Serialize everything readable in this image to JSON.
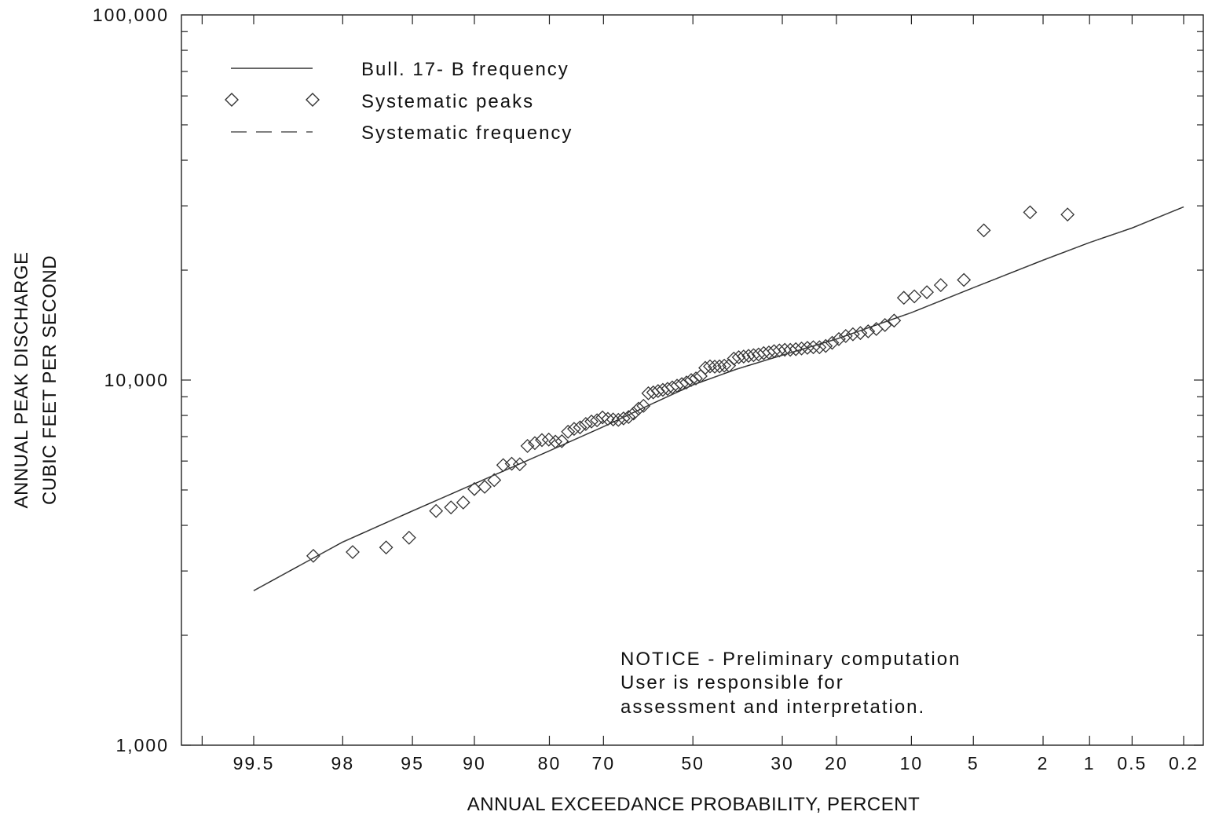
{
  "chart_data": {
    "type": "scatter",
    "y_scale": "log",
    "x_scale": "normal-probability-exceedance",
    "xlabel": "ANNUAL EXCEEDANCE PROBABILITY, PERCENT",
    "ylabel_lines": [
      "ANNUAL PEAK DISCHARGE",
      "CUBIC FEET PER SECOND"
    ],
    "ylim": [
      1000,
      100000
    ],
    "xlim": [
      99.8,
      0.1
    ],
    "y_ticks": [
      1000,
      10000,
      100000
    ],
    "y_tick_labels": [
      "1,000",
      "10,000",
      "100,000"
    ],
    "x_ticks": [
      99.5,
      98,
      95,
      90,
      80,
      70,
      50,
      30,
      20,
      10,
      5,
      2,
      1,
      0.5,
      0.2
    ],
    "x_tick_labels": [
      "99.5",
      "98",
      "95",
      "90",
      "80",
      "70",
      "50",
      "30",
      "20",
      "10",
      "5",
      "2",
      "1",
      "0.5",
      "0.2"
    ],
    "legend": {
      "placement": "top-left",
      "entries": [
        {
          "label": "Bull. 17- B frequency",
          "symbol": "solid-line"
        },
        {
          "label": "Systematic peaks",
          "symbol": "diamond"
        },
        {
          "label": "Systematic frequency",
          "symbol": "dashed-line"
        }
      ]
    },
    "notice": [
      "NOTICE -  Preliminary computation",
      "User is responsible for",
      "assessment and interpretation."
    ],
    "series": [
      {
        "name": "Bull. 17- B frequency",
        "kind": "line",
        "x": [
          99.5,
          98,
          95,
          90,
          80,
          70,
          60,
          50,
          40,
          30,
          20,
          10,
          5,
          2,
          1,
          0.5,
          0.2
        ],
        "y": [
          2650,
          3600,
          4380,
          5200,
          6400,
          7450,
          8550,
          9700,
          10700,
          11700,
          12950,
          15300,
          17900,
          21300,
          23800,
          26100,
          29800
        ]
      },
      {
        "name": "Systematic peaks",
        "kind": "scatter",
        "x": [
          98.7,
          97.7,
          96.4,
          95.2,
          93.4,
          92.2,
          91.1,
          90,
          88.9,
          87.8,
          86.7,
          85.6,
          84.5,
          83.4,
          82.3,
          81.2,
          80.1,
          79,
          77.9,
          76.8,
          75.7,
          74.6,
          73.5,
          72.4,
          71.3,
          70.2,
          69.1,
          68,
          66.9,
          65.8,
          64.7,
          63.6,
          62.5,
          61.4,
          60.3,
          59.2,
          58.1,
          57,
          55.9,
          54.8,
          53.7,
          52.6,
          51.5,
          50.4,
          49.3,
          48.2,
          47.1,
          46,
          44.9,
          43.8,
          42.7,
          41.6,
          40.5,
          39.4,
          38.3,
          37.2,
          36.1,
          35,
          33.9,
          32.8,
          31.7,
          30.6,
          29.5,
          28.4,
          27.3,
          26.2,
          25.1,
          24,
          22.9,
          21.8,
          20.7,
          19.6,
          18.5,
          17.4,
          16.3,
          15.2,
          14.1,
          13,
          11.9,
          10.8,
          9.7,
          8.5,
          7.3,
          5.6,
          4.4,
          2.4,
          1.4
        ],
        "y": [
          3300,
          3380,
          3480,
          3700,
          4380,
          4480,
          4620,
          5030,
          5100,
          5320,
          5850,
          5900,
          5880,
          6600,
          6720,
          6850,
          6870,
          6780,
          6800,
          7220,
          7350,
          7420,
          7580,
          7700,
          7760,
          7900,
          7830,
          7800,
          7780,
          7850,
          7920,
          8100,
          8350,
          8500,
          9200,
          9250,
          9330,
          9400,
          9460,
          9550,
          9650,
          9750,
          9850,
          10000,
          10100,
          10250,
          10800,
          10900,
          10880,
          10900,
          10950,
          10950,
          11450,
          11550,
          11600,
          11650,
          11700,
          11750,
          11850,
          11900,
          12000,
          12050,
          12100,
          12100,
          12150,
          12200,
          12250,
          12300,
          12300,
          12400,
          12650,
          12950,
          13200,
          13350,
          13450,
          13600,
          13800,
          14150,
          14550,
          16800,
          16950,
          17400,
          18200,
          18800,
          25700,
          28800,
          28400
        ]
      },
      {
        "name": "Systematic frequency",
        "kind": "dashed-line",
        "x": [
          99.5,
          98,
          95,
          90,
          80,
          70,
          60,
          50,
          40,
          30,
          20,
          10,
          5,
          2,
          1,
          0.5,
          0.2
        ],
        "y": [
          2650,
          3600,
          4380,
          5200,
          6400,
          7450,
          8550,
          9700,
          10700,
          11700,
          12950,
          15300,
          17900,
          21300,
          23800,
          26100,
          29800
        ]
      }
    ]
  }
}
